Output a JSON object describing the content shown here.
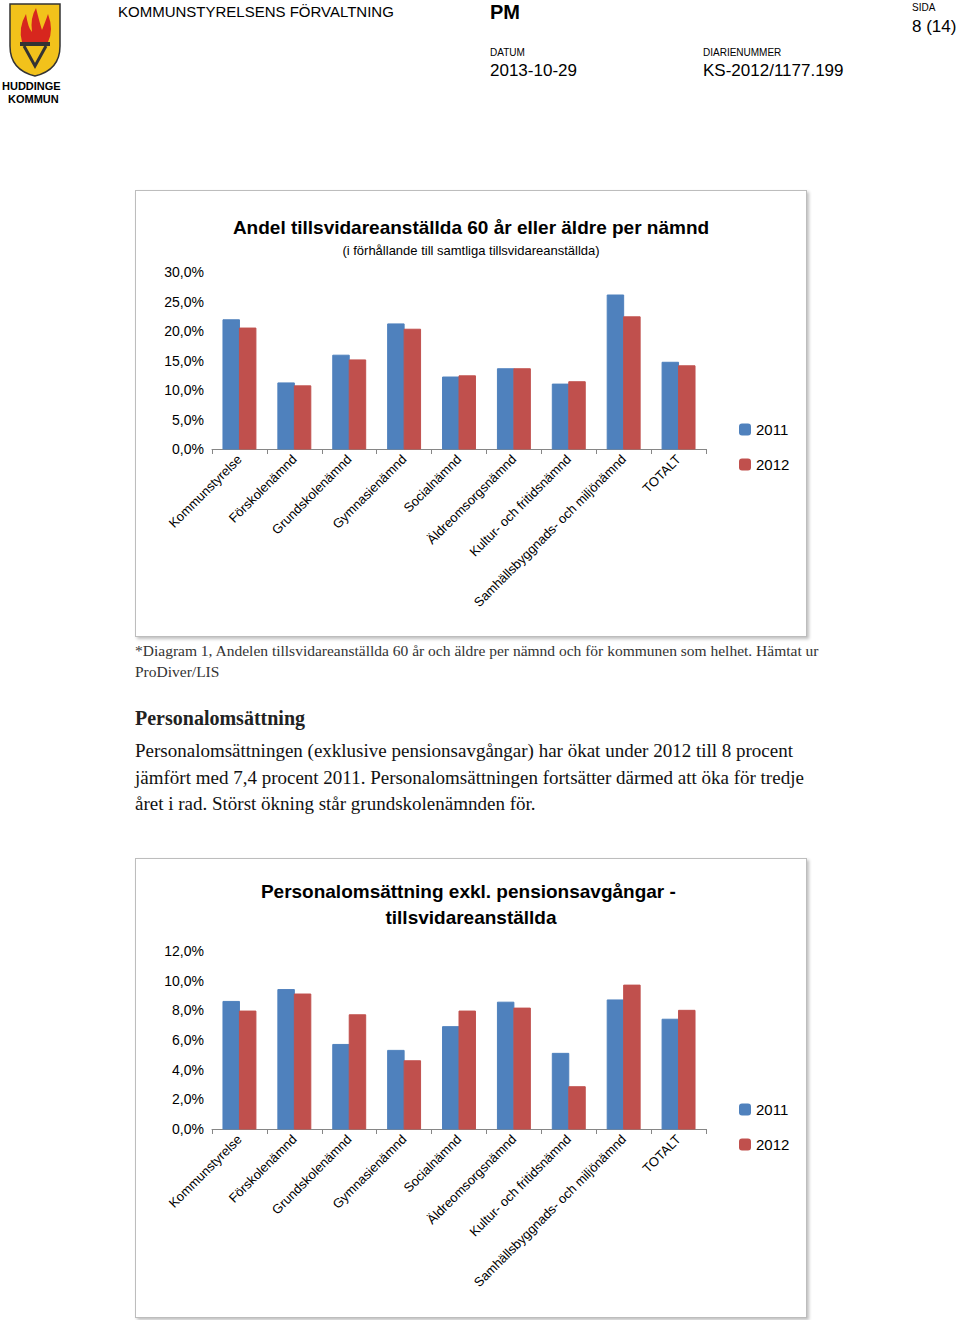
{
  "header": {
    "logo_text": [
      "HUDDINGE",
      "KOMMUN"
    ],
    "department": "KOMMUNSTYRELSENS FÖRVALTNING",
    "doc_type": "PM",
    "page_label": "SIDA",
    "page": "8 (14)",
    "date_label": "DATUM",
    "date": "2013-10-29",
    "reg_label": "DIARIENUMMER",
    "reg_number": "KS-2012/1177.199"
  },
  "chart_data": [
    {
      "type": "bar",
      "title": "Andel tillsvidareanställda 60 år eller äldre per nämnd",
      "subtitle": "(i förhållande till samtliga tillsvidareanställda)",
      "categories": [
        "Kommunstyrelse",
        "Förskolenämnd",
        "Grundskolenämnd",
        "Gymnasienämnd",
        "Socialnämnd",
        "Äldreomsorgsnämnd",
        "Kultur- och fritidsnämnd",
        "Samhällsbyggnads- och miljönämnd",
        "TOTALT"
      ],
      "series": [
        {
          "name": "2011",
          "color": "#4f81bd",
          "values": [
            21.9,
            11.2,
            15.9,
            21.2,
            12.2,
            13.6,
            11.0,
            26.1,
            14.7
          ]
        },
        {
          "name": "2012",
          "color": "#c0504d",
          "values": [
            20.5,
            10.7,
            15.1,
            20.3,
            12.4,
            13.6,
            11.4,
            22.4,
            14.1
          ]
        }
      ],
      "ylim": [
        0,
        30
      ],
      "yticks": [
        {
          "value": 0,
          "label": "0,0%"
        },
        {
          "value": 5,
          "label": "5,0%"
        },
        {
          "value": 10,
          "label": "10,0%"
        },
        {
          "value": 15,
          "label": "15,0%"
        },
        {
          "value": 20,
          "label": "20,0%"
        },
        {
          "value": 25,
          "label": "25,0%"
        },
        {
          "value": 30,
          "label": "30,0%"
        }
      ],
      "grid": false,
      "legend": "right"
    },
    {
      "type": "bar",
      "title": "Personalomsättning exkl. pensionsavgångar - tillsvidareanställda",
      "categories": [
        "Kommunstyrelse",
        "Förskolenämnd",
        "Grundskolenämnd",
        "Gymnasienämnd",
        "Socialnämnd",
        "Äldreomsorgsnämnd",
        "Kultur- och fritidsnämnd",
        "Samhällsbyggnads- och miljönämnd",
        "TOTALT"
      ],
      "series": [
        {
          "name": "2011",
          "color": "#4f81bd",
          "values": [
            8.6,
            9.4,
            5.7,
            5.3,
            6.9,
            8.55,
            5.1,
            8.7,
            7.4
          ]
        },
        {
          "name": "2012",
          "color": "#c0504d",
          "values": [
            7.95,
            9.1,
            7.7,
            4.6,
            7.95,
            8.15,
            2.85,
            9.7,
            8.0
          ]
        }
      ],
      "ylim": [
        0,
        12
      ],
      "yticks": [
        {
          "value": 0,
          "label": "0,0%"
        },
        {
          "value": 2,
          "label": "2,0%"
        },
        {
          "value": 4,
          "label": "4,0%"
        },
        {
          "value": 6,
          "label": "6,0%"
        },
        {
          "value": 8,
          "label": "8,0%"
        },
        {
          "value": 10,
          "label": "10,0%"
        },
        {
          "value": 12,
          "label": "12,0%"
        }
      ],
      "grid": false,
      "legend": "right"
    }
  ],
  "caption": "*Diagram 1, Andelen tillsvidareanställda 60 år och äldre per nämnd och för kommunen som helhet. Hämtat ur ProDiver/LIS",
  "section": {
    "heading": "Personalomsättning",
    "text": "Personalomsättningen (exklusive pensionsavgångar) har ökat under 2012 till 8 procent jämfört med 7,4 procent 2011. Personalomsättningen fortsätter därmed att öka för tredje året i rad. Störst ökning står grundskolenämnden för."
  }
}
